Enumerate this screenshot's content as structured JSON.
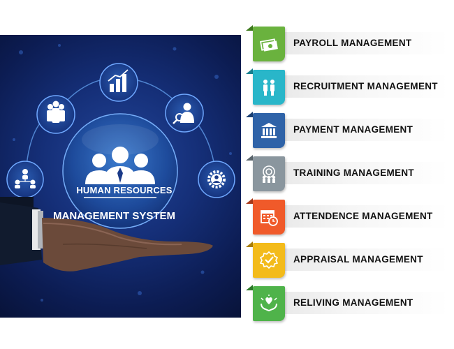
{
  "hero": {
    "badge_text": "HUMAN RESOURCES",
    "system_label": "MANAGEMENT SYSTEM"
  },
  "menu": [
    {
      "label": "PAYROLL MANAGEMENT",
      "icon": "money-icon",
      "color": "#6ab23e",
      "fold": "#3f7a1e"
    },
    {
      "label": "RECRUITMENT MANAGEMENT",
      "icon": "people-icon",
      "color": "#29b6c9",
      "fold": "#17808f"
    },
    {
      "label": "PAYMENT MANAGEMENT",
      "icon": "bank-icon",
      "color": "#2f63a8",
      "fold": "#1a3f73"
    },
    {
      "label": "TRAINING  MANAGEMENT",
      "icon": "training-icon",
      "color": "#8a969e",
      "fold": "#5a656c"
    },
    {
      "label": "ATTENDENCE  MANAGEMENT",
      "icon": "calendar-clock-icon",
      "color": "#f05a2a",
      "fold": "#a8391a"
    },
    {
      "label": "APPRAISAL  MANAGEMENT",
      "icon": "award-badge-icon",
      "color": "#f3bb1b",
      "fold": "#a87d0a"
    },
    {
      "label": "RELIVING MANAGEMENT",
      "icon": "heart-hands-icon",
      "color": "#4fb34a",
      "fold": "#2e7a2a"
    }
  ]
}
